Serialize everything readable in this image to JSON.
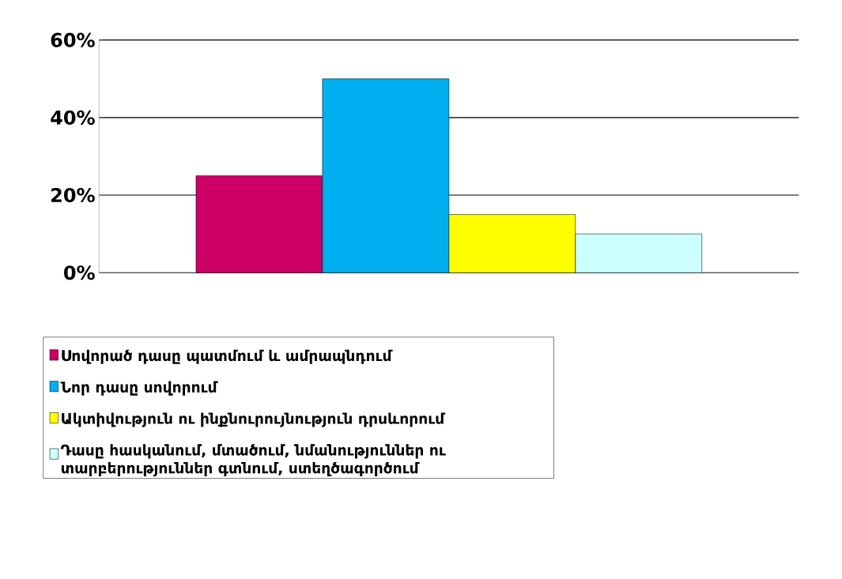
{
  "chart_data": {
    "type": "bar",
    "categories": [
      null
    ],
    "series": [
      {
        "name": "Սովորած դասը պատմում և ամրապնդում",
        "color": "#cc0066",
        "values": [
          25
        ]
      },
      {
        "name": "Նոր դասը սովորում",
        "color": "#00b0f0",
        "values": [
          50
        ]
      },
      {
        "name": "Ակտիվություն ու ինքնուրույնություն դրսևորում",
        "color": "#ffff00",
        "values": [
          15
        ]
      },
      {
        "name": "Դասը հասկանում, մտածում, նմանություններ ու տարբերություններ գտնում, ստեղծագործում",
        "color": "#ccffff",
        "values": [
          10
        ]
      }
    ],
    "ylim": [
      0,
      60
    ],
    "yticks": [
      {
        "value": 0,
        "label": "0%"
      },
      {
        "value": 20,
        "label": "20%"
      },
      {
        "value": 40,
        "label": "40%"
      },
      {
        "value": 60,
        "label": "60%"
      }
    ],
    "grid": "y",
    "legend": "bottom"
  }
}
